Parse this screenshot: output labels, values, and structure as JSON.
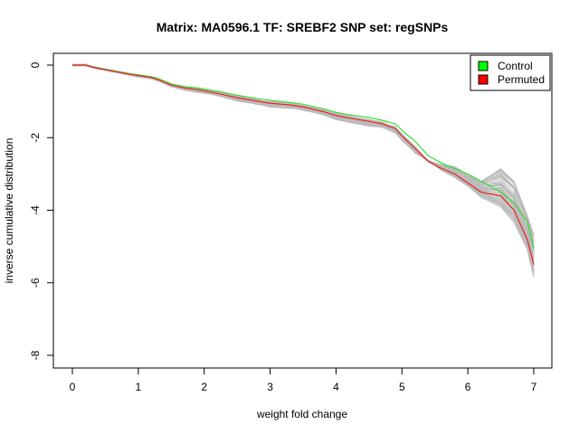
{
  "chart_data": {
    "type": "line",
    "title": "Matrix: MA0596.1 TF: SREBF2 SNP set: regSNPs",
    "xlabel": "weight fold change",
    "ylabel": "inverse cumulative distribution",
    "xlim": [
      0,
      7
    ],
    "ylim": [
      -8,
      0
    ],
    "x_ticks": [
      "0",
      "1",
      "2",
      "3",
      "4",
      "5",
      "6",
      "7"
    ],
    "y_ticks": [
      "-8",
      "-6",
      "-4",
      "-2",
      "0"
    ],
    "grid": false,
    "legend_position": "top-right",
    "legend": [
      {
        "label": "Control",
        "color": "#00ff00"
      },
      {
        "label": "Permuted",
        "color": "#ff0000"
      }
    ],
    "colors": {
      "control": "#33dd33",
      "permuted": "#ee2222",
      "background_runs": "#bbbbbb"
    },
    "series": [
      {
        "name": "Control",
        "x": [
          0,
          0.2,
          0.3,
          0.4,
          0.6,
          0.8,
          1.0,
          1.2,
          1.3,
          1.5,
          1.7,
          1.9,
          2.0,
          2.2,
          2.5,
          2.8,
          3.0,
          3.3,
          3.5,
          3.8,
          4.0,
          4.2,
          4.5,
          4.7,
          4.9,
          5.0,
          5.2,
          5.4,
          5.6,
          5.8,
          6.0,
          6.2,
          6.5,
          6.7,
          6.9,
          7.0
        ],
        "values": [
          0,
          0,
          -0.05,
          -0.08,
          -0.15,
          -0.22,
          -0.27,
          -0.32,
          -0.37,
          -0.52,
          -0.59,
          -0.63,
          -0.66,
          -0.72,
          -0.83,
          -0.92,
          -0.97,
          -1.03,
          -1.08,
          -1.2,
          -1.3,
          -1.37,
          -1.44,
          -1.52,
          -1.62,
          -1.8,
          -2.1,
          -2.5,
          -2.7,
          -2.85,
          -3.0,
          -3.2,
          -3.5,
          -3.8,
          -4.3,
          -5.05
        ]
      },
      {
        "name": "Permuted",
        "x": [
          0,
          0.2,
          0.3,
          0.4,
          0.6,
          0.8,
          1.0,
          1.2,
          1.3,
          1.5,
          1.7,
          1.9,
          2.0,
          2.2,
          2.5,
          2.8,
          3.0,
          3.3,
          3.5,
          3.8,
          4.0,
          4.2,
          4.5,
          4.7,
          4.9,
          5.0,
          5.2,
          5.4,
          5.6,
          5.8,
          6.0,
          6.2,
          6.5,
          6.7,
          6.9,
          7.0
        ],
        "values": [
          0,
          0,
          -0.05,
          -0.09,
          -0.16,
          -0.23,
          -0.29,
          -0.34,
          -0.4,
          -0.55,
          -0.63,
          -0.68,
          -0.71,
          -0.78,
          -0.9,
          -0.99,
          -1.05,
          -1.1,
          -1.15,
          -1.28,
          -1.39,
          -1.46,
          -1.55,
          -1.62,
          -1.75,
          -1.95,
          -2.3,
          -2.65,
          -2.85,
          -3.0,
          -3.25,
          -3.5,
          -3.6,
          -4.0,
          -4.8,
          -5.5
        ]
      }
    ]
  }
}
